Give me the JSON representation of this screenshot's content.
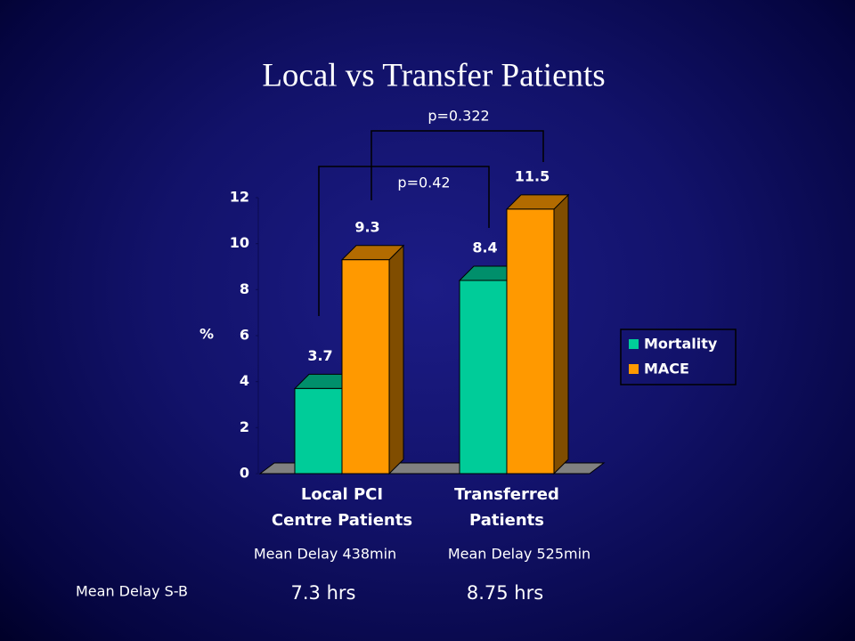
{
  "chart_data": {
    "type": "bar3d",
    "title": "Local vs Transfer Patients",
    "y_label": "%",
    "categories": [
      "Local PCI\nCentre Patients",
      "Transferred\nPatients"
    ],
    "series": [
      {
        "name": "Mortality",
        "color": "#00CC99",
        "values": [
          3.7,
          8.4
        ]
      },
      {
        "name": "MACE",
        "color": "#FF9900",
        "values": [
          9.3,
          11.5
        ]
      }
    ],
    "ylim": [
      0,
      12
    ],
    "yticks": [
      0,
      2,
      4,
      6,
      8,
      10,
      12
    ],
    "legend": "right",
    "annotations": [
      "p=0.322",
      "p=0.42",
      "Mean Delay 438min",
      "Mean Delay 525min",
      "Mean Delay S-B",
      "7.3 hrs",
      "8.75 hrs"
    ]
  }
}
